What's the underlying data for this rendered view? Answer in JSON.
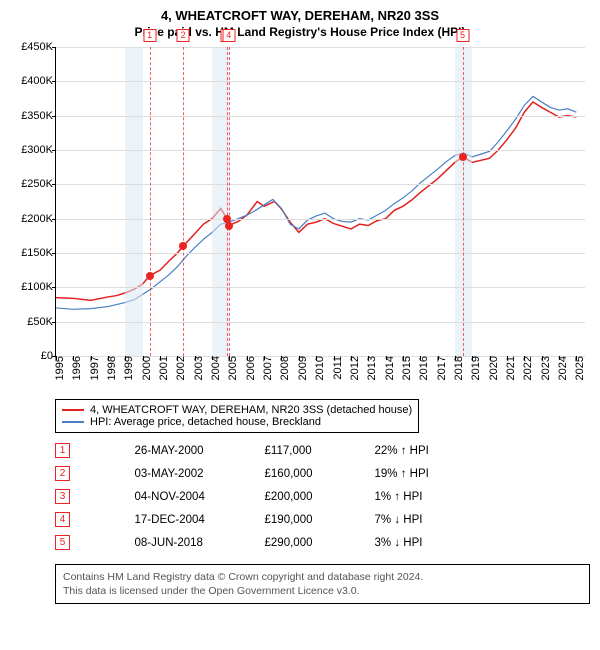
{
  "title": "4, WHEATCROFT WAY, DEREHAM, NR20 3SS",
  "subtitle": "Price paid vs. HM Land Registry's House Price Index (HPI)",
  "chart": {
    "type": "line",
    "x_start": 1995.0,
    "x_end": 2025.5,
    "x_ticks": [
      1995,
      1996,
      1997,
      1998,
      1999,
      2000,
      2001,
      2002,
      2003,
      2004,
      2005,
      2006,
      2007,
      2008,
      2009,
      2010,
      2011,
      2012,
      2013,
      2014,
      2015,
      2016,
      2017,
      2018,
      2019,
      2020,
      2021,
      2022,
      2023,
      2024,
      2025
    ],
    "y_min": 0,
    "y_max": 450,
    "y_ticks": [
      0,
      50,
      100,
      150,
      200,
      250,
      300,
      350,
      400,
      450
    ],
    "y_prefix": "£",
    "y_suffix": "K",
    "grid_color": "#dddddd",
    "band_color": "#dbe7f3",
    "bands": [
      [
        1999,
        2000
      ],
      [
        2004,
        2005
      ],
      [
        2018,
        2019
      ]
    ],
    "markers": [
      {
        "n": "1",
        "x": 2000.4,
        "y": 117
      },
      {
        "n": "2",
        "x": 2002.33,
        "y": 160
      },
      {
        "n": "3",
        "x": 2004.84,
        "y": 200
      },
      {
        "n": "4",
        "x": 2004.96,
        "y": 190
      },
      {
        "n": "5",
        "x": 2018.44,
        "y": 290
      }
    ],
    "series": [
      {
        "name": "4, WHEATCROFT WAY, DEREHAM, NR20 3SS (detached house)",
        "color": "#e2201e",
        "width": 1.5,
        "points": [
          [
            1995,
            85
          ],
          [
            1996,
            84
          ],
          [
            1997,
            81
          ],
          [
            1998,
            86
          ],
          [
            1998.5,
            88
          ],
          [
            1999,
            92
          ],
          [
            1999.5,
            97
          ],
          [
            2000,
            105
          ],
          [
            2000.4,
            117
          ],
          [
            2001,
            125
          ],
          [
            2001.5,
            138
          ],
          [
            2002,
            150
          ],
          [
            2002.33,
            160
          ],
          [
            2003,
            178
          ],
          [
            2003.5,
            192
          ],
          [
            2004,
            200
          ],
          [
            2004.5,
            215
          ],
          [
            2004.84,
            200
          ],
          [
            2004.96,
            190
          ],
          [
            2005.5,
            196
          ],
          [
            2006,
            205
          ],
          [
            2006.6,
            225
          ],
          [
            2007,
            218
          ],
          [
            2007.6,
            225
          ],
          [
            2008,
            214
          ],
          [
            2008.5,
            195
          ],
          [
            2009,
            180
          ],
          [
            2009.5,
            192
          ],
          [
            2010,
            195
          ],
          [
            2010.5,
            200
          ],
          [
            2011,
            193
          ],
          [
            2011.5,
            189
          ],
          [
            2012,
            185
          ],
          [
            2012.5,
            192
          ],
          [
            2013,
            190
          ],
          [
            2013.5,
            197
          ],
          [
            2014,
            200
          ],
          [
            2014.5,
            212
          ],
          [
            2015,
            218
          ],
          [
            2015.5,
            227
          ],
          [
            2016,
            238
          ],
          [
            2016.5,
            248
          ],
          [
            2017,
            258
          ],
          [
            2017.5,
            270
          ],
          [
            2018,
            282
          ],
          [
            2018.44,
            290
          ],
          [
            2019,
            282
          ],
          [
            2019.5,
            285
          ],
          [
            2020,
            288
          ],
          [
            2020.5,
            300
          ],
          [
            2021,
            315
          ],
          [
            2021.5,
            332
          ],
          [
            2022,
            355
          ],
          [
            2022.5,
            370
          ],
          [
            2023,
            362
          ],
          [
            2023.5,
            355
          ],
          [
            2024,
            348
          ],
          [
            2024.5,
            350
          ],
          [
            2025,
            348
          ]
        ]
      },
      {
        "name": "HPI: Average price, detached house, Breckland",
        "color": "#4a7fc4",
        "width": 1.2,
        "points": [
          [
            1995,
            70
          ],
          [
            1996,
            68
          ],
          [
            1997,
            69
          ],
          [
            1998,
            72
          ],
          [
            1999,
            78
          ],
          [
            1999.5,
            82
          ],
          [
            2000,
            90
          ],
          [
            2000.5,
            98
          ],
          [
            2001,
            108
          ],
          [
            2001.5,
            118
          ],
          [
            2002,
            130
          ],
          [
            2002.5,
            145
          ],
          [
            2003,
            158
          ],
          [
            2003.5,
            170
          ],
          [
            2004,
            180
          ],
          [
            2004.5,
            192
          ],
          [
            2005,
            195
          ],
          [
            2006,
            205
          ],
          [
            2006.5,
            212
          ],
          [
            2007,
            220
          ],
          [
            2007.5,
            228
          ],
          [
            2008,
            215
          ],
          [
            2008.5,
            192
          ],
          [
            2009,
            185
          ],
          [
            2009.5,
            198
          ],
          [
            2010,
            204
          ],
          [
            2010.5,
            208
          ],
          [
            2011,
            200
          ],
          [
            2011.5,
            196
          ],
          [
            2012,
            195
          ],
          [
            2012.5,
            200
          ],
          [
            2013,
            198
          ],
          [
            2013.5,
            205
          ],
          [
            2014,
            212
          ],
          [
            2014.5,
            222
          ],
          [
            2015,
            230
          ],
          [
            2015.5,
            240
          ],
          [
            2016,
            252
          ],
          [
            2016.5,
            262
          ],
          [
            2017,
            272
          ],
          [
            2017.5,
            283
          ],
          [
            2018,
            292
          ],
          [
            2018.5,
            296
          ],
          [
            2019,
            290
          ],
          [
            2019.5,
            294
          ],
          [
            2020,
            298
          ],
          [
            2020.5,
            312
          ],
          [
            2021,
            328
          ],
          [
            2021.5,
            345
          ],
          [
            2022,
            365
          ],
          [
            2022.5,
            378
          ],
          [
            2023,
            370
          ],
          [
            2023.5,
            362
          ],
          [
            2024,
            358
          ],
          [
            2024.5,
            360
          ],
          [
            2025,
            355
          ]
        ]
      }
    ]
  },
  "legend": [
    {
      "color": "#e2201e",
      "label": "4, WHEATCROFT WAY, DEREHAM, NR20 3SS (detached house)"
    },
    {
      "color": "#4a7fc4",
      "label": "HPI: Average price, detached house, Breckland"
    }
  ],
  "sales": [
    {
      "n": "1",
      "date": "26-MAY-2000",
      "price": "£117,000",
      "delta": "22% ↑ HPI"
    },
    {
      "n": "2",
      "date": "03-MAY-2002",
      "price": "£160,000",
      "delta": "19% ↑ HPI"
    },
    {
      "n": "3",
      "date": "04-NOV-2004",
      "price": "£200,000",
      "delta": "1% ↑ HPI"
    },
    {
      "n": "4",
      "date": "17-DEC-2004",
      "price": "£190,000",
      "delta": "7% ↓ HPI"
    },
    {
      "n": "5",
      "date": "08-JUN-2018",
      "price": "£290,000",
      "delta": "3% ↓ HPI"
    }
  ],
  "footer_line1": "Contains HM Land Registry data © Crown copyright and database right 2024.",
  "footer_line2": "This data is licensed under the Open Government Licence v3.0."
}
